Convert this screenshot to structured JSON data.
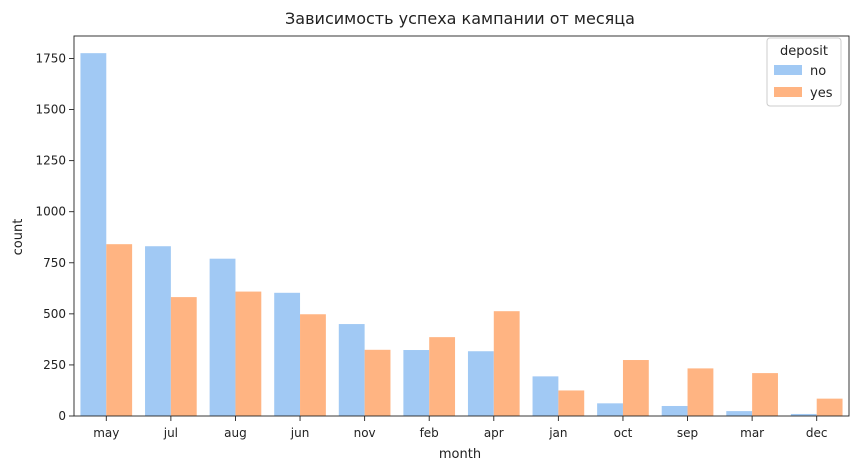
{
  "chart_data": {
    "type": "bar",
    "title": "Зависимость успеха кампании от месяца",
    "xlabel": "month",
    "ylabel": "count",
    "categories": [
      "may",
      "jul",
      "aug",
      "jun",
      "nov",
      "feb",
      "apr",
      "jan",
      "oct",
      "sep",
      "mar",
      "dec"
    ],
    "series": [
      {
        "name": "no",
        "color": "#a1c9f4",
        "values": [
          1776,
          831,
          770,
          603,
          450,
          323,
          317,
          194,
          62,
          49,
          24,
          10
        ]
      },
      {
        "name": "yes",
        "color": "#ffb482",
        "values": [
          841,
          582,
          609,
          498,
          324,
          386,
          513,
          125,
          274,
          233,
          210,
          85
        ]
      }
    ],
    "ylim": [
      0,
      1860
    ],
    "yticks": [
      0,
      250,
      500,
      750,
      1000,
      1250,
      1500,
      1750
    ],
    "legend": {
      "title": "deposit",
      "placement": "top-right"
    },
    "grid": false
  }
}
